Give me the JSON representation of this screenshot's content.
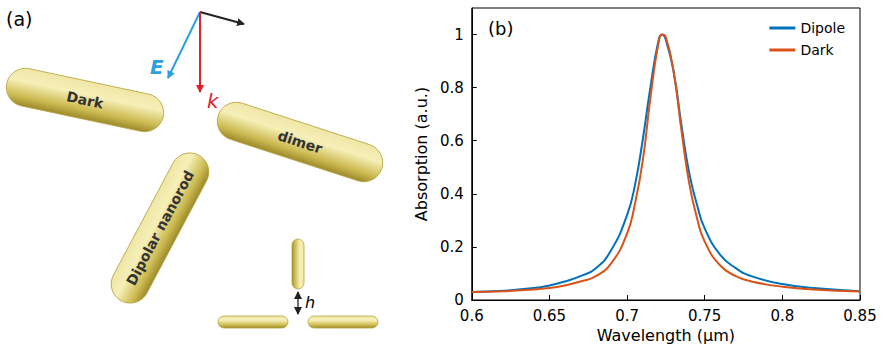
{
  "panel_a": {
    "label": "(a)",
    "field_label": "E",
    "wavevector_label": "k",
    "rods": [
      "Dark",
      "dimer",
      "Dipolar nanorod"
    ],
    "gap_label": "h"
  },
  "chart_data": {
    "type": "line",
    "title": "(b)",
    "x_label": "Wavelength (μm)",
    "y_label": "Absorption (a.u.)",
    "x": [
      0.6,
      0.62,
      0.64,
      0.65,
      0.66,
      0.67,
      0.68,
      0.69,
      0.7,
      0.705,
      0.71,
      0.715,
      0.72,
      0.7225,
      0.725,
      0.73,
      0.735,
      0.74,
      0.745,
      0.75,
      0.76,
      0.77,
      0.78,
      0.8,
      0.82,
      0.85
    ],
    "series": [
      {
        "name": "Dipole",
        "color": "#0072BD",
        "values": [
          0.03,
          0.035,
          0.045,
          0.055,
          0.07,
          0.09,
          0.12,
          0.19,
          0.32,
          0.43,
          0.6,
          0.8,
          0.97,
          1.0,
          0.98,
          0.86,
          0.66,
          0.48,
          0.36,
          0.27,
          0.17,
          0.12,
          0.09,
          0.06,
          0.045,
          0.033
        ]
      },
      {
        "name": "Dark",
        "color": "#D95319",
        "values": [
          0.03,
          0.033,
          0.04,
          0.045,
          0.055,
          0.07,
          0.09,
          0.14,
          0.25,
          0.36,
          0.52,
          0.76,
          0.96,
          1.0,
          0.99,
          0.86,
          0.64,
          0.44,
          0.31,
          0.22,
          0.13,
          0.09,
          0.07,
          0.05,
          0.04,
          0.032
        ]
      }
    ],
    "xlim": [
      0.6,
      0.85
    ],
    "xticks": [
      0.6,
      0.65,
      0.7,
      0.75,
      0.8,
      0.85
    ],
    "ylim": [
      0,
      1.1
    ],
    "yticks": [
      0,
      0.2,
      0.4,
      0.6,
      0.8,
      1
    ],
    "grid": false,
    "legend": "upper right"
  }
}
